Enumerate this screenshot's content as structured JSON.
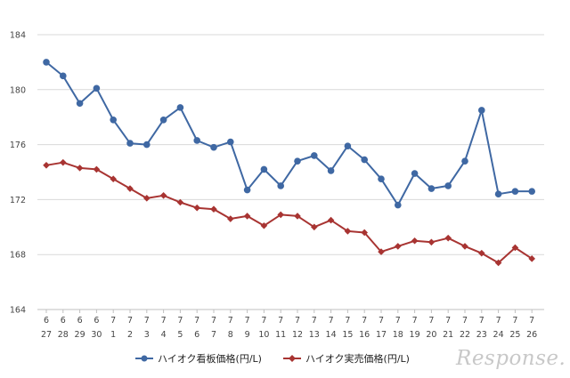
{
  "chart_data": {
    "type": "line",
    "title": "",
    "xlabel": "",
    "ylabel": "",
    "ylim": [
      164,
      184
    ],
    "yticks": [
      164,
      168,
      172,
      176,
      180,
      184
    ],
    "grid": true,
    "legend": "bottom-center",
    "categories": [
      {
        "month": "6",
        "day": "27"
      },
      {
        "month": "6",
        "day": "28"
      },
      {
        "month": "6",
        "day": "29"
      },
      {
        "month": "6",
        "day": "30"
      },
      {
        "month": "7",
        "day": "1"
      },
      {
        "month": "7",
        "day": "2"
      },
      {
        "month": "7",
        "day": "3"
      },
      {
        "month": "7",
        "day": "4"
      },
      {
        "month": "7",
        "day": "5"
      },
      {
        "month": "7",
        "day": "6"
      },
      {
        "month": "7",
        "day": "7"
      },
      {
        "month": "7",
        "day": "8"
      },
      {
        "month": "7",
        "day": "9"
      },
      {
        "month": "7",
        "day": "10"
      },
      {
        "month": "7",
        "day": "11"
      },
      {
        "month": "7",
        "day": "12"
      },
      {
        "month": "7",
        "day": "13"
      },
      {
        "month": "7",
        "day": "14"
      },
      {
        "month": "7",
        "day": "15"
      },
      {
        "month": "7",
        "day": "16"
      },
      {
        "month": "7",
        "day": "17"
      },
      {
        "month": "7",
        "day": "18"
      },
      {
        "month": "7",
        "day": "19"
      },
      {
        "month": "7",
        "day": "20"
      },
      {
        "month": "7",
        "day": "21"
      },
      {
        "month": "7",
        "day": "22"
      },
      {
        "month": "7",
        "day": "23"
      },
      {
        "month": "7",
        "day": "24"
      },
      {
        "month": "7",
        "day": "25"
      },
      {
        "month": "7",
        "day": "26"
      }
    ],
    "series": [
      {
        "name": "ハイオク看板価格(円/L)",
        "color": "#3f68a3",
        "marker": "circle",
        "values": [
          182.0,
          181.0,
          179.0,
          180.1,
          177.8,
          176.1,
          176.0,
          177.8,
          178.7,
          176.3,
          175.8,
          176.2,
          172.7,
          174.2,
          173.0,
          174.8,
          175.2,
          174.1,
          175.9,
          174.9,
          173.5,
          171.6,
          173.9,
          172.8,
          173.0,
          174.8,
          178.5,
          172.4,
          172.6,
          172.6
        ]
      },
      {
        "name": "ハイオク実売価格(円/L)",
        "color": "#a83432",
        "marker": "diamond",
        "values": [
          174.5,
          174.7,
          174.3,
          174.2,
          173.5,
          172.8,
          172.1,
          172.3,
          171.8,
          171.4,
          171.3,
          170.6,
          170.8,
          170.1,
          170.9,
          170.8,
          170.0,
          170.5,
          169.7,
          169.6,
          168.2,
          168.6,
          169.0,
          168.9,
          169.2,
          168.6,
          168.1,
          167.4,
          168.5,
          167.7
        ]
      }
    ]
  },
  "watermark": {
    "text": "Response."
  }
}
